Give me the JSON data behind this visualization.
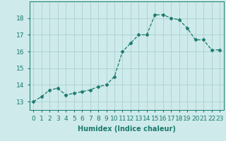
{
  "x": [
    0,
    1,
    2,
    3,
    4,
    5,
    6,
    7,
    8,
    9,
    10,
    11,
    12,
    13,
    14,
    15,
    16,
    17,
    18,
    19,
    20,
    21,
    22,
    23
  ],
  "y": [
    13.0,
    13.3,
    13.7,
    13.8,
    13.4,
    13.5,
    13.6,
    13.7,
    13.9,
    14.0,
    14.5,
    16.0,
    16.5,
    17.0,
    17.0,
    18.2,
    18.2,
    18.0,
    17.9,
    17.4,
    16.7,
    16.7,
    16.1,
    16.1
  ],
  "xlabel": "Humidex (Indice chaleur)",
  "xlim": [
    -0.5,
    23.5
  ],
  "ylim": [
    12.5,
    19.0
  ],
  "yticks": [
    13,
    14,
    15,
    16,
    17,
    18
  ],
  "xtick_labels": [
    "0",
    "1",
    "2",
    "3",
    "4",
    "5",
    "6",
    "7",
    "8",
    "9",
    "10",
    "11",
    "12",
    "13",
    "14",
    "15",
    "16",
    "17",
    "18",
    "19",
    "20",
    "21",
    "22",
    "23"
  ],
  "line_color": "#1a7a6e",
  "marker": "D",
  "marker_size": 2.5,
  "bg_color": "#ceeaea",
  "grid_color": "#add0d0",
  "axis_fontsize": 7,
  "tick_fontsize": 6.5
}
